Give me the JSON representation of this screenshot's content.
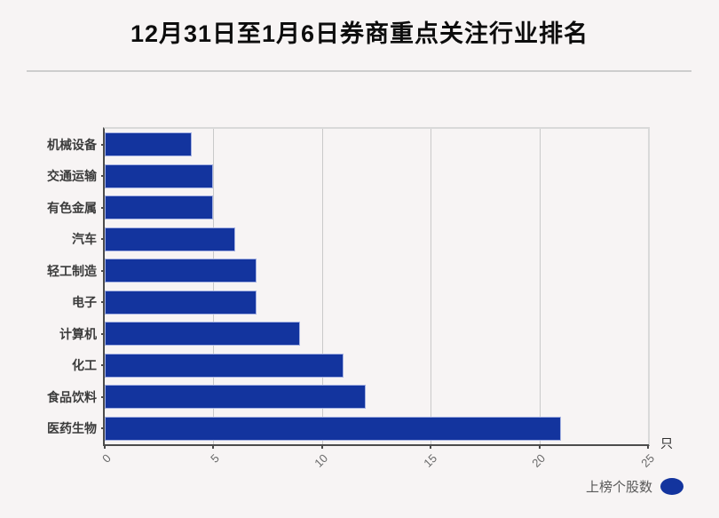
{
  "header": {
    "title": "12月31日至1月6日券商重点关注行业排名"
  },
  "chart_data": {
    "type": "bar",
    "orientation": "horizontal",
    "title": "12月31日至1月6日券商重点关注行业排名",
    "categories": [
      "机械设备",
      "交通运输",
      "有色金属",
      "汽车",
      "轻工制造",
      "电子",
      "计算机",
      "化工",
      "食品饮料",
      "医药生物"
    ],
    "values": [
      4,
      5,
      5,
      6,
      7,
      7,
      9,
      11,
      12,
      21
    ],
    "series_name": "上榜个股数",
    "xlim": [
      0,
      25
    ],
    "xticks": [
      0,
      5,
      10,
      15,
      20,
      25
    ],
    "x_unit": "只",
    "grid": true,
    "legend": {
      "label": "上榜个股数",
      "position": "bottom-right",
      "marker": "ellipse"
    },
    "colors": {
      "bar_fill": "#13349e",
      "bar_edge": "#a4b1e2",
      "gridline": "#c9c9c9",
      "axis_dark": "#4c4c4c",
      "axis_light": "#d9d9d9",
      "background": "#f7f4f4"
    }
  }
}
